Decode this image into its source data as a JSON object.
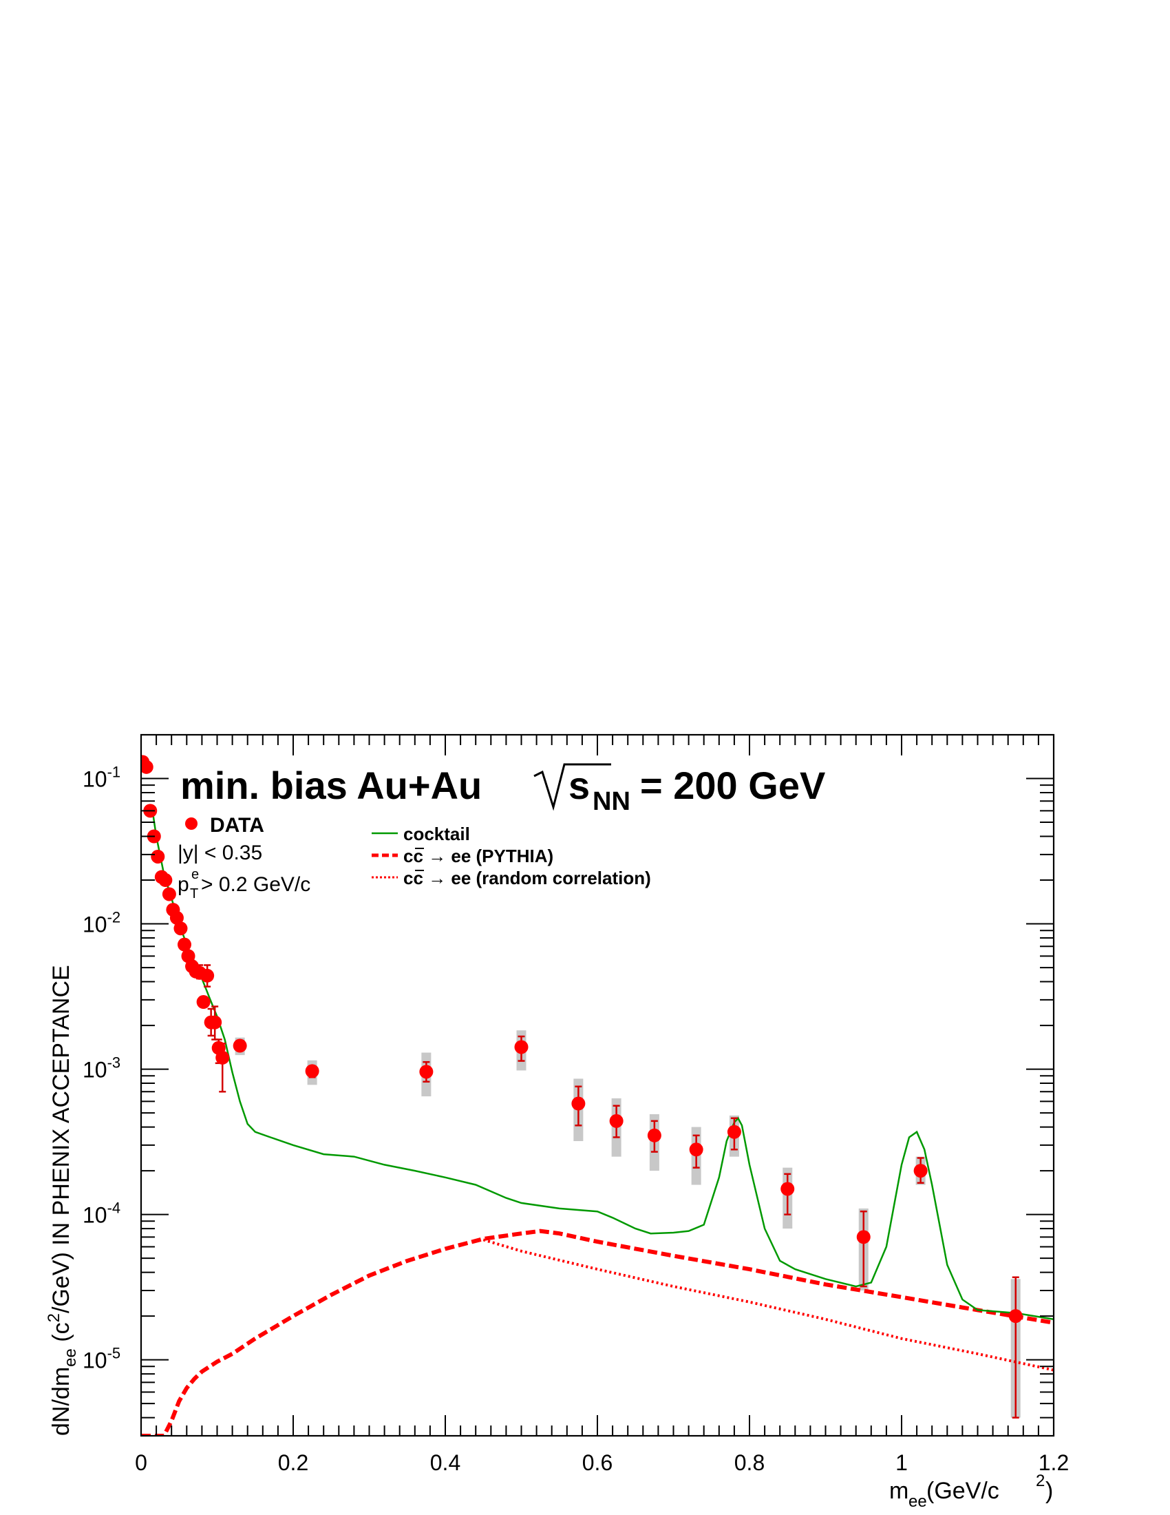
{
  "chart_data": {
    "type": "scatter",
    "title_parts": {
      "pre": "min. bias Au+Au ",
      "s": "s",
      "sub": "NN",
      "post": " = 200 GeV"
    },
    "xlabel_parts": {
      "m": "m",
      "sub": "ee",
      "unit1": " (GeV/c",
      "sup": "2",
      "unit2": ")"
    },
    "ylabel_parts": {
      "a": "dN/dm",
      "sub": "ee",
      "b": " (c",
      "sup": "2",
      "c": "/GeV) IN PHENIX ACCEPTANCE"
    },
    "xlim": [
      0,
      1.2
    ],
    "ylim": [
      3e-06,
      0.2
    ],
    "yscale": "log",
    "x_ticks": [
      "0",
      "0.2",
      "0.4",
      "0.6",
      "0.8",
      "1",
      "1.2"
    ],
    "y_ticks": [
      {
        "base": "10",
        "exp": "-1"
      },
      {
        "base": "10",
        "exp": "-2"
      },
      {
        "base": "10",
        "exp": "-3"
      },
      {
        "base": "10",
        "exp": "-4"
      },
      {
        "base": "10",
        "exp": "-5"
      }
    ],
    "cuts": {
      "y_cut": "|y| < 0.35",
      "pt_p": "p",
      "pt_sup": "e",
      "pt_sub": "T",
      "pt_rest": " > 0.2 GeV/c"
    },
    "legend": {
      "data": "DATA",
      "cocktail": "cocktail",
      "ccbar_pythia_c1": "c",
      "ccbar_pythia_c2": "c",
      "ccbar_pythia_rest": " → ee (PYTHIA)",
      "ccbar_random_c1": "c",
      "ccbar_random_c2": "c",
      "ccbar_random_rest": " → ee (random correlation)"
    },
    "colors": {
      "data": "#ff0000",
      "data_err": "#d40000",
      "sys": "#c8c8c8",
      "cocktail": "#009900",
      "ccbar": "#ff0000"
    },
    "data_points": [
      {
        "x": 0.002,
        "y": 0.13
      },
      {
        "x": 0.007,
        "y": 0.12
      },
      {
        "x": 0.012,
        "y": 0.06
      },
      {
        "x": 0.017,
        "y": 0.04
      },
      {
        "x": 0.022,
        "y": 0.029
      },
      {
        "x": 0.027,
        "y": 0.021
      },
      {
        "x": 0.032,
        "y": 0.02
      },
      {
        "x": 0.037,
        "y": 0.016
      },
      {
        "x": 0.042,
        "y": 0.0125
      },
      {
        "x": 0.047,
        "y": 0.011
      },
      {
        "x": 0.052,
        "y": 0.0093
      },
      {
        "x": 0.057,
        "y": 0.0072
      },
      {
        "x": 0.062,
        "y": 0.006
      },
      {
        "x": 0.067,
        "y": 0.0051
      },
      {
        "x": 0.072,
        "y": 0.0047
      },
      {
        "x": 0.077,
        "y": 0.0046,
        "err": [
          0.0042,
          0.0052
        ]
      },
      {
        "x": 0.082,
        "y": 0.0029
      },
      {
        "x": 0.087,
        "y": 0.0044,
        "err": [
          0.0037,
          0.0052
        ]
      },
      {
        "x": 0.092,
        "y": 0.0021,
        "err": [
          0.0017,
          0.0026
        ]
      },
      {
        "x": 0.097,
        "y": 0.0021,
        "err": [
          0.0016,
          0.0027
        ]
      },
      {
        "x": 0.102,
        "y": 0.0014,
        "err": [
          0.0011,
          0.0016
        ]
      },
      {
        "x": 0.107,
        "y": 0.0012,
        "err": [
          0.0007,
          0.0015
        ]
      },
      {
        "x": 0.13,
        "y": 0.00145,
        "err": [
          0.00138,
          0.00155
        ],
        "sys": [
          0.00125,
          0.00165
        ]
      },
      {
        "x": 0.225,
        "y": 0.00097,
        "err": [
          0.00088,
          0.00105
        ],
        "sys": [
          0.00078,
          0.00115
        ]
      },
      {
        "x": 0.375,
        "y": 0.00096,
        "err": [
          0.00082,
          0.00112
        ],
        "sys": [
          0.00065,
          0.0013
        ]
      },
      {
        "x": 0.5,
        "y": 0.00142,
        "err": [
          0.00114,
          0.00168
        ],
        "sys": [
          0.00098,
          0.00185
        ]
      },
      {
        "x": 0.575,
        "y": 0.00058,
        "err": [
          0.00041,
          0.00076
        ],
        "sys": [
          0.00032,
          0.00086
        ]
      },
      {
        "x": 0.625,
        "y": 0.00044,
        "err": [
          0.00034,
          0.00056
        ],
        "sys": [
          0.00025,
          0.00063
        ]
      },
      {
        "x": 0.675,
        "y": 0.00035,
        "err": [
          0.00027,
          0.00044
        ],
        "sys": [
          0.0002,
          0.00049
        ]
      },
      {
        "x": 0.73,
        "y": 0.00028,
        "err": [
          0.00021,
          0.00035
        ],
        "sys": [
          0.00016,
          0.0004
        ]
      },
      {
        "x": 0.78,
        "y": 0.00037,
        "err": [
          0.00028,
          0.00046
        ],
        "sys": [
          0.00025,
          0.00048
        ]
      },
      {
        "x": 0.85,
        "y": 0.00015,
        "err": [
          0.0001,
          0.00019
        ],
        "sys": [
          8e-05,
          0.00021
        ]
      },
      {
        "x": 0.95,
        "y": 7e-05,
        "err": [
          3.2e-05,
          0.000105
        ],
        "sys": [
          3e-05,
          0.00011
        ]
      },
      {
        "x": 1.025,
        "y": 0.0002,
        "err": [
          0.000165,
          0.000245
        ],
        "sys": [
          0.00016,
          0.00025
        ]
      },
      {
        "x": 1.15,
        "y": 2e-05,
        "err": [
          4e-06,
          3.7e-05
        ],
        "sys": [
          4e-06,
          3.6e-05
        ]
      }
    ],
    "cocktail": {
      "x": [
        0.015,
        0.02,
        0.03,
        0.04,
        0.05,
        0.06,
        0.07,
        0.08,
        0.09,
        0.1,
        0.11,
        0.12,
        0.13,
        0.14,
        0.15,
        0.17,
        0.2,
        0.24,
        0.28,
        0.32,
        0.36,
        0.4,
        0.44,
        0.48,
        0.5,
        0.55,
        0.6,
        0.62,
        0.65,
        0.67,
        0.7,
        0.72,
        0.74,
        0.76,
        0.77,
        0.78,
        0.785,
        0.79,
        0.8,
        0.82,
        0.84,
        0.86,
        0.9,
        0.94,
        0.96,
        0.98,
        1.0,
        1.01,
        1.02,
        1.03,
        1.04,
        1.06,
        1.08,
        1.1,
        1.15,
        1.2
      ],
      "y": [
        0.06,
        0.04,
        0.022,
        0.015,
        0.01,
        0.0072,
        0.0055,
        0.0042,
        0.0031,
        0.0023,
        0.0016,
        0.00095,
        0.0006,
        0.00042,
        0.00037,
        0.00034,
        0.0003,
        0.00026,
        0.00025,
        0.00022,
        0.0002,
        0.00018,
        0.00016,
        0.00013,
        0.00012,
        0.00011,
        0.000105,
        9.5e-05,
        8e-05,
        7.4e-05,
        7.5e-05,
        7.7e-05,
        8.5e-05,
        0.00018,
        0.00032,
        0.00043,
        0.00046,
        0.00041,
        0.00022,
        8e-05,
        4.8e-05,
        4.2e-05,
        3.6e-05,
        3.2e-05,
        3.4e-05,
        6e-05,
        0.00022,
        0.00034,
        0.00037,
        0.00028,
        0.00016,
        4.5e-05,
        2.6e-05,
        2.2e-05,
        2.1e-05,
        1.9e-05
      ]
    },
    "ccbar_pythia": {
      "x": [
        0.0,
        0.03,
        0.04,
        0.05,
        0.06,
        0.07,
        0.08,
        0.1,
        0.12,
        0.15,
        0.2,
        0.25,
        0.3,
        0.35,
        0.4,
        0.45,
        0.5,
        0.525,
        0.55,
        0.6,
        0.7,
        0.8,
        0.9,
        1.0,
        1.1,
        1.2
      ],
      "y": [
        3e-06,
        3e-06,
        3.8e-06,
        5.2e-06,
        6.4e-06,
        7.4e-06,
        8.3e-06,
        9.7e-06,
        1.1e-05,
        1.4e-05,
        2e-05,
        2.8e-05,
        3.8e-05,
        4.8e-05,
        5.8e-05,
        6.8e-05,
        7.4e-05,
        7.7e-05,
        7.4e-05,
        6.5e-05,
        5.2e-05,
        4.2e-05,
        3.3e-05,
        2.7e-05,
        2.2e-05,
        1.8e-05
      ]
    },
    "ccbar_random": {
      "x": [
        0.45,
        0.5,
        0.6,
        0.7,
        0.8,
        0.9,
        1.0,
        1.1,
        1.2
      ],
      "y": [
        6.7e-05,
        5.6e-05,
        4.2e-05,
        3.2e-05,
        2.5e-05,
        1.9e-05,
        1.4e-05,
        1.1e-05,
        8.5e-06
      ]
    }
  }
}
